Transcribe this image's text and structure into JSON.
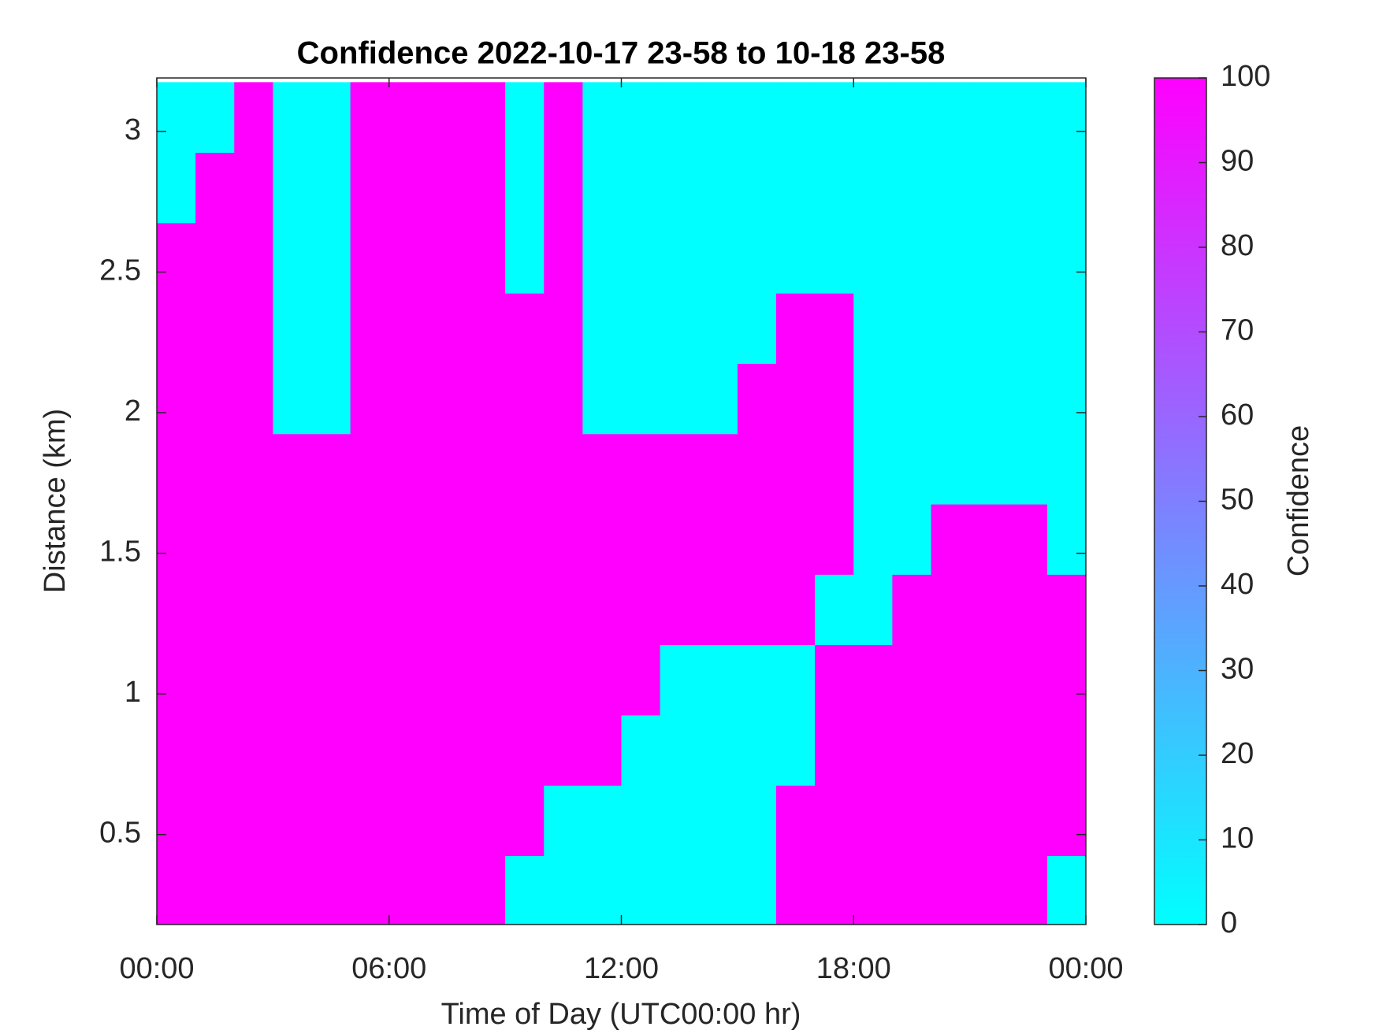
{
  "chart_data": {
    "type": "heatmap",
    "title": "Confidence 2022-10-17 23-58 to 10-18 23-58",
    "x_label": "Time of Day (UTC00:00 hr)",
    "y_label": "Distance (km)",
    "colorbar_label": "Confidence",
    "colormap": [
      "#00ffff",
      "#ff00ff"
    ],
    "clim": [
      0,
      100
    ],
    "cticks": [
      0,
      10,
      20,
      30,
      40,
      50,
      60,
      70,
      80,
      90,
      100
    ],
    "xlim": [
      0,
      24
    ],
    "xticks": [
      {
        "value": 0,
        "label": "00:00"
      },
      {
        "value": 6,
        "label": "06:00"
      },
      {
        "value": 12,
        "label": "12:00"
      },
      {
        "value": 18,
        "label": "18:00"
      },
      {
        "value": 24,
        "label": "00:00"
      }
    ],
    "ylim": [
      0.18,
      3.19
    ],
    "yticks": [
      0.5,
      1,
      1.5,
      2,
      2.5,
      3
    ],
    "x": [
      0.5,
      1.5,
      2.5,
      3.5,
      4.5,
      5.5,
      6.5,
      7.5,
      8.5,
      9.5,
      10.5,
      11.5,
      12.5,
      13.5,
      14.5,
      15.5,
      16.5,
      17.5,
      18.5,
      19.5,
      20.5,
      21.5,
      22.5,
      23.5
    ],
    "y": [
      0.3,
      0.55,
      0.8,
      1.05,
      1.3,
      1.55,
      1.8,
      2.05,
      2.3,
      2.55,
      2.8,
      3.05
    ],
    "z": [
      [
        100,
        100,
        100,
        100,
        100,
        100,
        100,
        100,
        100,
        0,
        0,
        0,
        0,
        0,
        0,
        0,
        100,
        100,
        100,
        100,
        100,
        100,
        100,
        0
      ],
      [
        100,
        100,
        100,
        100,
        100,
        100,
        100,
        100,
        100,
        100,
        0,
        0,
        0,
        0,
        0,
        0,
        100,
        100,
        100,
        100,
        100,
        100,
        100,
        100
      ],
      [
        100,
        100,
        100,
        100,
        100,
        100,
        100,
        100,
        100,
        100,
        100,
        100,
        0,
        0,
        0,
        0,
        0,
        100,
        100,
        100,
        100,
        100,
        100,
        100
      ],
      [
        100,
        100,
        100,
        100,
        100,
        100,
        100,
        100,
        100,
        100,
        100,
        100,
        100,
        0,
        0,
        0,
        0,
        100,
        100,
        100,
        100,
        100,
        100,
        100
      ],
      [
        100,
        100,
        100,
        100,
        100,
        100,
        100,
        100,
        100,
        100,
        100,
        100,
        100,
        100,
        100,
        100,
        100,
        0,
        0,
        100,
        100,
        100,
        100,
        100
      ],
      [
        100,
        100,
        100,
        100,
        100,
        100,
        100,
        100,
        100,
        100,
        100,
        100,
        100,
        100,
        100,
        100,
        100,
        100,
        0,
        0,
        100,
        100,
        100,
        0
      ],
      [
        100,
        100,
        100,
        100,
        100,
        100,
        100,
        100,
        100,
        100,
        100,
        100,
        100,
        100,
        100,
        100,
        100,
        100,
        0,
        0,
        0,
        0,
        0,
        0
      ],
      [
        100,
        100,
        100,
        0,
        0,
        100,
        100,
        100,
        100,
        100,
        100,
        0,
        0,
        0,
        0,
        100,
        100,
        100,
        0,
        0,
        0,
        0,
        0,
        0
      ],
      [
        100,
        100,
        100,
        0,
        0,
        100,
        100,
        100,
        100,
        100,
        100,
        0,
        0,
        0,
        0,
        0,
        100,
        100,
        0,
        0,
        0,
        0,
        0,
        0
      ],
      [
        100,
        100,
        100,
        0,
        0,
        100,
        100,
        100,
        100,
        0,
        100,
        0,
        0,
        0,
        0,
        0,
        0,
        0,
        0,
        0,
        0,
        0,
        0,
        0
      ],
      [
        0,
        100,
        100,
        0,
        0,
        100,
        100,
        100,
        100,
        0,
        100,
        0,
        0,
        0,
        0,
        0,
        0,
        0,
        0,
        0,
        0,
        0,
        0,
        0
      ],
      [
        0,
        0,
        100,
        0,
        0,
        100,
        100,
        100,
        100,
        0,
        100,
        0,
        0,
        0,
        0,
        0,
        0,
        0,
        0,
        0,
        0,
        0,
        0,
        0
      ]
    ]
  }
}
